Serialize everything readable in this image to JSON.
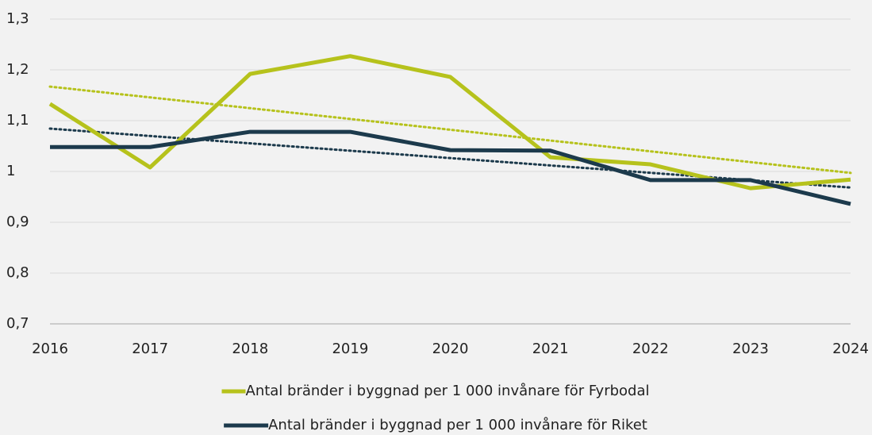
{
  "chart_data": {
    "type": "line",
    "categories": [
      "2016",
      "2017",
      "2018",
      "2019",
      "2020",
      "2021",
      "2022",
      "2023",
      "2024"
    ],
    "series": [
      {
        "name": "Antal bränder i byggnad per 1 000 invånare för Fyrbodal",
        "color": "#b6c21c",
        "values": [
          1.133,
          1.008,
          1.192,
          1.227,
          1.186,
          1.028,
          1.014,
          0.967,
          0.984
        ]
      },
      {
        "name": "Antal bränder i byggnad per 1 000 invånare för Riket",
        "color": "#1c3a4c",
        "values": [
          1.048,
          1.048,
          1.078,
          1.078,
          1.042,
          1.041,
          0.983,
          0.983,
          0.936
        ]
      }
    ],
    "ylim": [
      0.7,
      1.3
    ],
    "yticks": [
      {
        "value": 0.7,
        "label": "0,7"
      },
      {
        "value": 0.8,
        "label": "0,8"
      },
      {
        "value": 0.9,
        "label": "0,9"
      },
      1,
      {
        "value": 1.1,
        "label": "1,1"
      },
      {
        "value": 1.2,
        "label": "1,2"
      },
      {
        "value": 1.3,
        "label": "1,3"
      }
    ],
    "grid": true,
    "trendline": true,
    "legend": "bottom"
  }
}
